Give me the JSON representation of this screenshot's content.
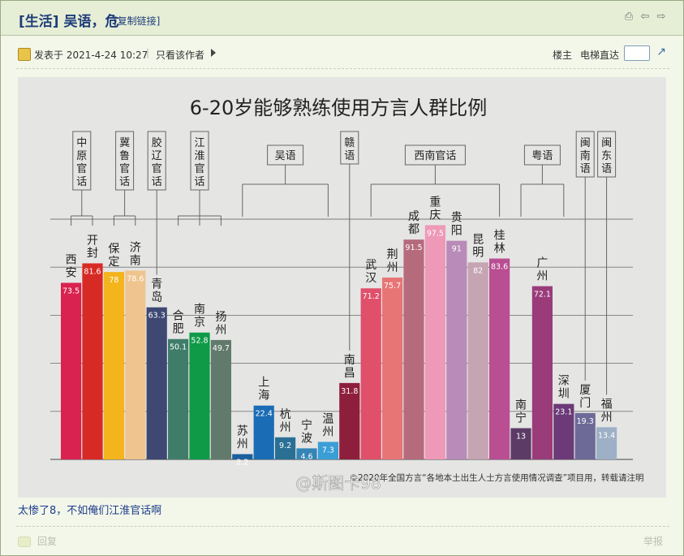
{
  "thread": {
    "category": "[生活]",
    "title": "吴语，危",
    "copy_link": "[复制链接]"
  },
  "post": {
    "posted_label": "发表于 2021-4-24 10:27",
    "only_author": "只看该作者",
    "floor": "楼主",
    "elevator": "电梯直达",
    "reply_text": "太惨了8，不如俺们江淮官话啊",
    "footer_reply": "回复",
    "footer_report": "举报"
  },
  "chart_data": {
    "type": "bar",
    "title": "6-20岁能够熟练使用方言人群比例",
    "ylim": [
      0,
      100
    ],
    "grid": true,
    "bars": [
      {
        "city": "西安",
        "value": 73.5,
        "color": "#d9224f"
      },
      {
        "city": "开封",
        "value": 81.6,
        "color": "#d82a24"
      },
      {
        "city": "保定",
        "value": 78,
        "color": "#f3b41c"
      },
      {
        "city": "济南",
        "value": 78.6,
        "color": "#f0c48e"
      },
      {
        "city": "青岛",
        "value": 63.3,
        "color": "#3e4872"
      },
      {
        "city": "合肥",
        "value": 50.1,
        "color": "#3f7d6a"
      },
      {
        "city": "南京",
        "value": 52.8,
        "color": "#0f9a48"
      },
      {
        "city": "扬州",
        "value": 49.7,
        "color": "#627a6c"
      },
      {
        "city": "苏州",
        "value": 2.2,
        "color": "#1b5f9e"
      },
      {
        "city": "上海",
        "value": 22.4,
        "color": "#1a6cb5"
      },
      {
        "city": "杭州",
        "value": 9.2,
        "color": "#2a6f94"
      },
      {
        "city": "宁波",
        "value": 4.6,
        "color": "#3484b6"
      },
      {
        "city": "温州",
        "value": 7.3,
        "color": "#3a9ed6"
      },
      {
        "city": "南昌",
        "value": 31.8,
        "color": "#8d1f3c"
      },
      {
        "city": "武汉",
        "value": 71.2,
        "color": "#e0506a"
      },
      {
        "city": "荆州",
        "value": 75.7,
        "color": "#e87576"
      },
      {
        "city": "成都",
        "value": 91.5,
        "color": "#b56b7c"
      },
      {
        "city": "重庆",
        "value": 97.5,
        "color": "#ee99b8"
      },
      {
        "city": "贵阳",
        "value": 91,
        "color": "#b98bb8"
      },
      {
        "city": "昆明",
        "value": 82,
        "color": "#c6a5b3"
      },
      {
        "city": "桂林",
        "value": 83.6,
        "color": "#b94e92"
      },
      {
        "city": "南宁",
        "value": 13,
        "color": "#5c3b66"
      },
      {
        "city": "广州",
        "value": 72.1,
        "color": "#9a3c7a"
      },
      {
        "city": "深圳",
        "value": 23.1,
        "color": "#6b3a77"
      },
      {
        "city": "厦门",
        "value": 19.3,
        "color": "#6d6a98"
      },
      {
        "city": "福州",
        "value": 13.4,
        "color": "#9db0c6"
      }
    ],
    "groups": [
      {
        "name": "中原官话",
        "vertical": true,
        "first": 0,
        "last": 1
      },
      {
        "name": "冀鲁官话",
        "vertical": true,
        "first": 2,
        "last": 3
      },
      {
        "name": "胶辽官话",
        "vertical": true,
        "first": 4,
        "last": 4
      },
      {
        "name": "江淮官话",
        "vertical": true,
        "first": 5,
        "last": 7
      },
      {
        "name": "吴语",
        "vertical": false,
        "first": 8,
        "last": 12
      },
      {
        "name": "赣语",
        "vertical": true,
        "first": 13,
        "last": 13
      },
      {
        "name": "西南官话",
        "vertical": false,
        "first": 14,
        "last": 20
      },
      {
        "name": "粤语",
        "vertical": false,
        "first": 21,
        "last": 23
      },
      {
        "name": "闽南语",
        "vertical": true,
        "first": 24,
        "last": 24
      },
      {
        "name": "闽东语",
        "vertical": true,
        "first": 25,
        "last": 25
      }
    ],
    "source_note": "©2020年全国方言“各地本土出生人士方言使用情况调查”项目用，转载请注明",
    "watermark": "@斯图卡98"
  }
}
